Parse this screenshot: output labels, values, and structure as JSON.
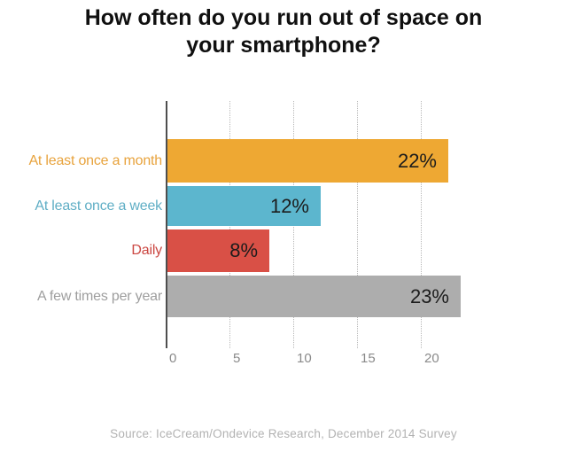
{
  "title": "How often do you run out of space on your smartphone?",
  "source_caption": "Source: IceCream/Ondevice Research, December 2014 Survey",
  "chart_data": {
    "type": "bar",
    "orientation": "horizontal",
    "title": "How often do you run out of space on your smartphone?",
    "categories": [
      "At least once a month",
      "At least once a week",
      "Daily",
      "A few times per year"
    ],
    "values": [
      22,
      12,
      8,
      23
    ],
    "value_labels": [
      "22%",
      "12%",
      "8%",
      "23%"
    ],
    "bar_colors": [
      "#EEA833",
      "#5CB6CE",
      "#D95046",
      "#ADADAD"
    ],
    "category_label_colors": [
      "#E8A33D",
      "#5FAEC5",
      "#CB4742",
      "#9E9E9E"
    ],
    "xlabel": "",
    "ylabel": "",
    "xlim": [
      0,
      24
    ],
    "x_ticks": [
      0,
      5,
      10,
      15,
      20
    ],
    "grid": "vertical-dotted",
    "legend": "none",
    "value_label_position": "inside-right",
    "source": "Source: IceCream/Ondevice Research, December 2014 Survey"
  }
}
